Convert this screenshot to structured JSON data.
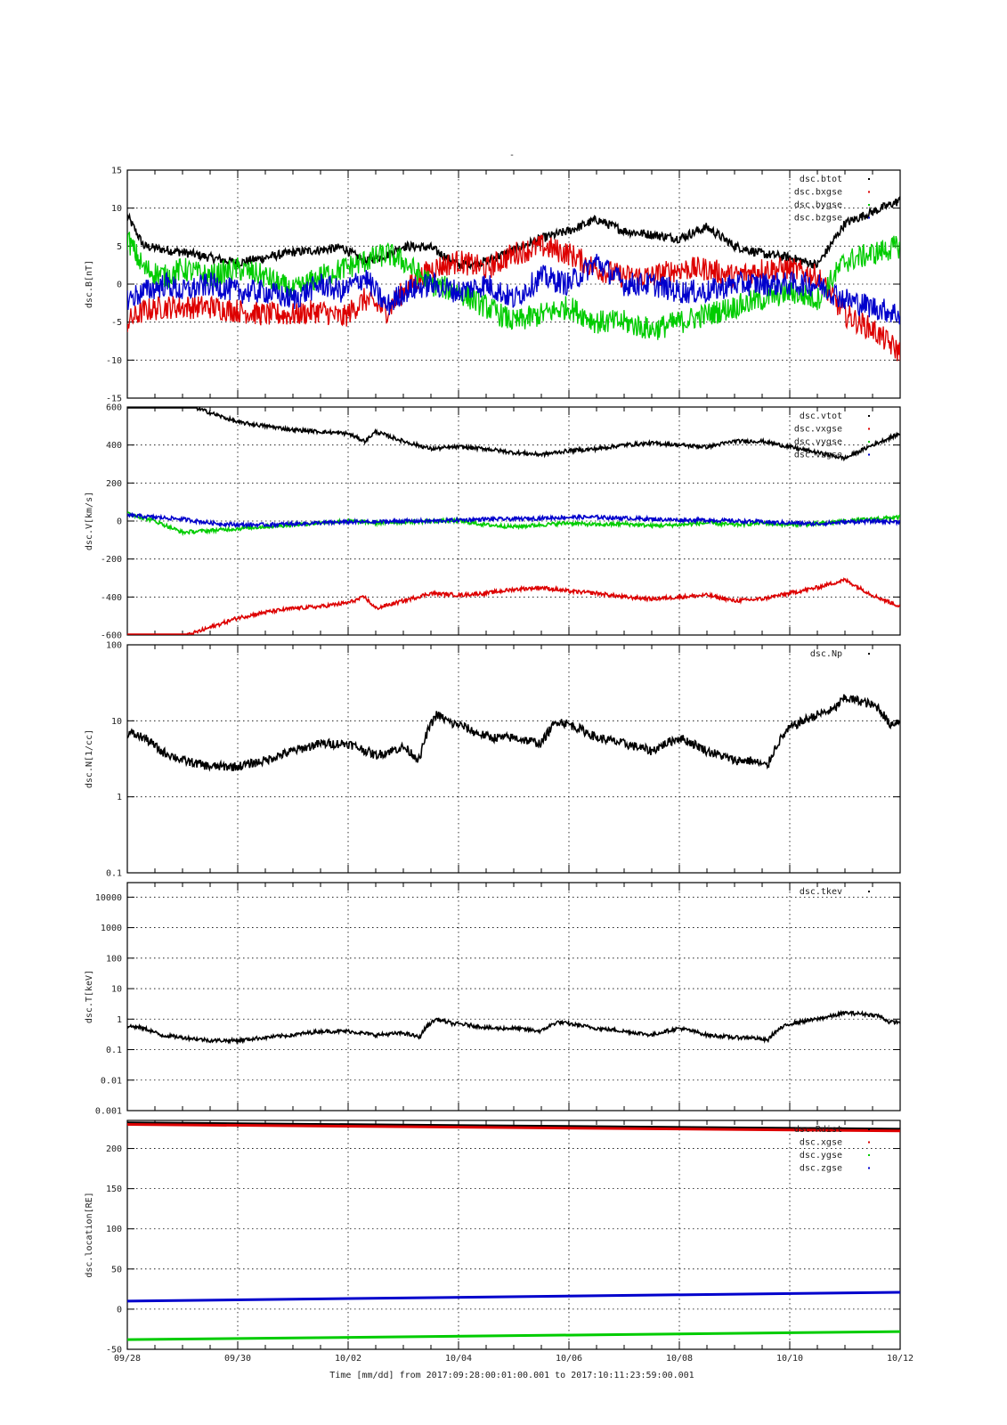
{
  "figure": {
    "title": "-",
    "x_axis_label": "Time [mm/dd]  from 2017:09:28:00:01:00.001  to  2017:10:11:23:59:00.001",
    "x_tick_labels": [
      "09/28",
      "09/30",
      "10/02",
      "10/04",
      "10/06",
      "10/08",
      "10/10",
      "10/12"
    ]
  },
  "chart_data": [
    {
      "type": "scatter",
      "ylabel": "dsc.B[nT]",
      "yscale": "linear",
      "ylim": [
        -15,
        15
      ],
      "yticks": [
        -15,
        -10,
        -5,
        0,
        5,
        10,
        15
      ],
      "xlim_days": [
        0,
        14
      ],
      "grid": true,
      "legend": "top-right",
      "series": [
        {
          "name": "dsc.btot",
          "color": "#000000",
          "x": [
            0,
            0.3,
            0.7,
            1,
            1.5,
            2,
            2.5,
            3,
            3.5,
            3.9,
            4.3,
            4.7,
            5,
            5.5,
            6,
            6.5,
            7,
            7.5,
            8,
            8.5,
            9,
            9.5,
            10,
            10.5,
            11,
            11.5,
            12,
            12.5,
            13,
            13.5,
            14
          ],
          "y": [
            9,
            5,
            4.5,
            4.2,
            3.5,
            2.8,
            3.5,
            4.2,
            4.5,
            4.8,
            3,
            3.8,
            5,
            4.8,
            2.5,
            3,
            4.5,
            6,
            7,
            8.5,
            7,
            6.5,
            6,
            7.5,
            5,
            4,
            3.5,
            2.5,
            8,
            9.5,
            11
          ]
        },
        {
          "name": "dsc.bxgse",
          "color": "#dd0000",
          "x": [
            0,
            0.3,
            0.7,
            1,
            1.5,
            2,
            2.5,
            3,
            3.5,
            3.9,
            4.3,
            4.7,
            5,
            5.5,
            6,
            6.5,
            7,
            7.5,
            8,
            8.5,
            9,
            9.5,
            10,
            10.5,
            11,
            11.5,
            12,
            12.5,
            13,
            13.5,
            14
          ],
          "y": [
            -5,
            -3.5,
            -3,
            -3,
            -3,
            -3.5,
            -4,
            -4,
            -3.5,
            -4.5,
            -2,
            -3.5,
            -1,
            2,
            3,
            2,
            4,
            5,
            4,
            2,
            1,
            1,
            2,
            2,
            1,
            2,
            2,
            1,
            -4,
            -6,
            -9
          ]
        },
        {
          "name": "dsc.bygse",
          "color": "#00cc00",
          "x": [
            0,
            0.3,
            0.7,
            1,
            1.5,
            2,
            2.5,
            3,
            3.5,
            3.9,
            4.3,
            4.7,
            5,
            5.5,
            6,
            6.5,
            7,
            7.5,
            8,
            8.5,
            9,
            9.5,
            10,
            10.5,
            11,
            11.5,
            12,
            12.5,
            13,
            13.5,
            14
          ],
          "y": [
            6,
            2,
            1,
            2,
            1,
            2,
            1,
            -1,
            1,
            2,
            3,
            4,
            3,
            0,
            -1,
            -3,
            -5,
            -4,
            -3,
            -5,
            -5,
            -6,
            -5,
            -4,
            -3,
            -2,
            -1,
            -2,
            3,
            4,
            5
          ]
        },
        {
          "name": "dsc.bzgse",
          "color": "#0000cc",
          "x": [
            0,
            0.3,
            0.7,
            1,
            1.5,
            2,
            2.5,
            3,
            3.5,
            3.9,
            4.3,
            4.7,
            5,
            5.5,
            6,
            6.5,
            7,
            7.5,
            8,
            8.5,
            9,
            9.5,
            10,
            10.5,
            11,
            11.5,
            12,
            12.5,
            13,
            13.5,
            14
          ],
          "y": [
            -2,
            -1,
            0,
            -1,
            0,
            -1,
            -1,
            -2,
            0,
            -1,
            1,
            -3,
            -1,
            0,
            -1,
            0,
            -2,
            1,
            0,
            3,
            0,
            0,
            -1,
            -1,
            0,
            0,
            0,
            0,
            -2,
            -3,
            -4
          ]
        }
      ]
    },
    {
      "type": "scatter",
      "ylabel": "dsc.V[km/s]",
      "yscale": "linear",
      "ylim": [
        -600,
        600
      ],
      "yticks": [
        -600,
        -400,
        -200,
        0,
        200,
        400,
        600
      ],
      "xlim_days": [
        0,
        14
      ],
      "grid": true,
      "legend": "top-right",
      "series": [
        {
          "name": "dsc.vtot",
          "color": "#000000",
          "x": [
            0,
            0.5,
            1,
            1.5,
            2,
            2.5,
            3,
            3.5,
            4,
            4.3,
            4.5,
            5,
            5.5,
            6,
            6.5,
            7,
            7.5,
            8,
            8.5,
            9,
            9.5,
            10,
            10.5,
            11,
            11.5,
            12,
            12.5,
            13,
            13.5,
            14
          ],
          "y": [
            630,
            640,
            620,
            570,
            520,
            500,
            480,
            470,
            460,
            420,
            470,
            420,
            380,
            390,
            380,
            360,
            350,
            370,
            380,
            400,
            410,
            400,
            390,
            420,
            420,
            390,
            360,
            330,
            400,
            460
          ]
        },
        {
          "name": "dsc.vxgse",
          "color": "#dd0000",
          "x": [
            0,
            0.5,
            1,
            1.5,
            2,
            2.5,
            3,
            3.5,
            4,
            4.3,
            4.5,
            5,
            5.5,
            6,
            6.5,
            7,
            7.5,
            8,
            8.5,
            9,
            9.5,
            10,
            10.5,
            11,
            11.5,
            12,
            12.5,
            13,
            13.5,
            14
          ],
          "y": [
            -620,
            -630,
            -610,
            -560,
            -510,
            -480,
            -460,
            -450,
            -430,
            -400,
            -460,
            -420,
            -380,
            -390,
            -380,
            -360,
            -350,
            -370,
            -380,
            -400,
            -410,
            -400,
            -390,
            -420,
            -410,
            -380,
            -350,
            -310,
            -390,
            -450
          ]
        },
        {
          "name": "dsc.vygse",
          "color": "#00cc00",
          "x": [
            0,
            0.5,
            1,
            1.5,
            2,
            2.5,
            3,
            3.5,
            4,
            4.5,
            5,
            5.5,
            6,
            6.5,
            7,
            7.5,
            8,
            8.5,
            9,
            9.5,
            10,
            10.5,
            11,
            11.5,
            12,
            12.5,
            13,
            13.5,
            14
          ],
          "y": [
            40,
            0,
            -60,
            -50,
            -40,
            -30,
            -20,
            -10,
            0,
            -10,
            -5,
            0,
            0,
            -20,
            -30,
            -20,
            -10,
            -20,
            -15,
            -25,
            -20,
            -10,
            -20,
            -10,
            -20,
            -15,
            0,
            10,
            20
          ]
        },
        {
          "name": "dsc.vzgse",
          "color": "#0000cc",
          "x": [
            0,
            0.5,
            1,
            1.5,
            2,
            2.5,
            3,
            3.5,
            4,
            4.5,
            5,
            5.5,
            6,
            6.5,
            7,
            7.5,
            8,
            8.5,
            9,
            9.5,
            10,
            10.5,
            11,
            11.5,
            12,
            12.5,
            13,
            13.5,
            14
          ],
          "y": [
            30,
            20,
            10,
            -10,
            -20,
            -20,
            -15,
            -10,
            -5,
            -5,
            0,
            0,
            5,
            10,
            10,
            15,
            20,
            20,
            15,
            10,
            5,
            5,
            0,
            -5,
            -10,
            -15,
            -5,
            0,
            -5
          ]
        }
      ]
    },
    {
      "type": "scatter",
      "ylabel": "dsc.N[1/cc]",
      "yscale": "log",
      "ylim": [
        0.1,
        100
      ],
      "yticks": [
        0.1,
        1,
        10,
        100
      ],
      "xlim_days": [
        0,
        14
      ],
      "grid": true,
      "legend": "top-right",
      "series": [
        {
          "name": "dsc.Np",
          "color": "#000000",
          "x": [
            0,
            0.3,
            0.6,
            1,
            1.5,
            2,
            2.5,
            3,
            3.5,
            4,
            4.5,
            5,
            5.3,
            5.6,
            5.9,
            6,
            6.3,
            6.6,
            7,
            7.5,
            7.8,
            8,
            8.5,
            9,
            9.5,
            10,
            10.5,
            11,
            11.3,
            11.6,
            12,
            12.5,
            12.8,
            13,
            13.3,
            13.6,
            13.8,
            14
          ],
          "y": [
            7,
            6,
            4,
            3,
            2.5,
            2.5,
            3,
            4,
            5,
            5,
            3.5,
            4.5,
            3,
            12,
            9,
            9,
            7,
            6,
            6,
            5,
            10,
            9,
            6,
            5,
            4,
            6,
            4,
            3,
            3,
            2.5,
            8,
            12,
            14,
            20,
            18,
            15,
            9,
            10
          ]
        }
      ]
    },
    {
      "type": "scatter",
      "ylabel": "dsc.T[keV]",
      "yscale": "log",
      "ylim": [
        0.001,
        30000
      ],
      "yticks": [
        0.001,
        0.01,
        0.1,
        1,
        10,
        100,
        1000,
        10000
      ],
      "ytick_labels": [
        "0.001",
        "0.01",
        "0.1",
        "1",
        "10",
        "100",
        "1000",
        "10000"
      ],
      "xlim_days": [
        0,
        14
      ],
      "grid": true,
      "legend": "top-right",
      "series": [
        {
          "name": "dsc.tkev",
          "color": "#000000",
          "x": [
            0,
            0.3,
            0.6,
            1,
            1.5,
            2,
            2.5,
            3,
            3.5,
            4,
            4.5,
            5,
            5.3,
            5.6,
            5.9,
            6,
            6.3,
            6.6,
            7,
            7.5,
            7.8,
            8,
            8.5,
            9,
            9.5,
            10,
            10.5,
            11,
            11.3,
            11.6,
            12,
            12.5,
            12.8,
            13,
            13.3,
            13.6,
            13.8,
            14
          ],
          "y": [
            0.6,
            0.5,
            0.3,
            0.25,
            0.2,
            0.2,
            0.25,
            0.3,
            0.4,
            0.4,
            0.3,
            0.35,
            0.25,
            1,
            0.7,
            0.7,
            0.6,
            0.5,
            0.5,
            0.4,
            0.8,
            0.7,
            0.5,
            0.4,
            0.3,
            0.5,
            0.3,
            0.25,
            0.25,
            0.2,
            0.7,
            1,
            1.3,
            1.6,
            1.5,
            1.3,
            0.8,
            0.8
          ]
        }
      ]
    },
    {
      "type": "line",
      "ylabel": "dsc.location[RE]",
      "yscale": "linear",
      "ylim": [
        -50,
        235
      ],
      "yticks": [
        -50,
        0,
        50,
        100,
        150,
        200
      ],
      "xlim_days": [
        0,
        14
      ],
      "grid": true,
      "legend": "top-right",
      "series": [
        {
          "name": "dsc.Rdist",
          "color": "#000000",
          "x": [
            0,
            14
          ],
          "y": [
            232,
            224
          ]
        },
        {
          "name": "dsc.xgse",
          "color": "#dd0000",
          "x": [
            0,
            14
          ],
          "y": [
            230,
            222
          ]
        },
        {
          "name": "dsc.ygse",
          "color": "#00cc00",
          "x": [
            0,
            14
          ],
          "y": [
            -38,
            -28
          ]
        },
        {
          "name": "dsc.zgse",
          "color": "#0000cc",
          "x": [
            0,
            14
          ],
          "y": [
            10,
            21
          ]
        }
      ]
    }
  ]
}
